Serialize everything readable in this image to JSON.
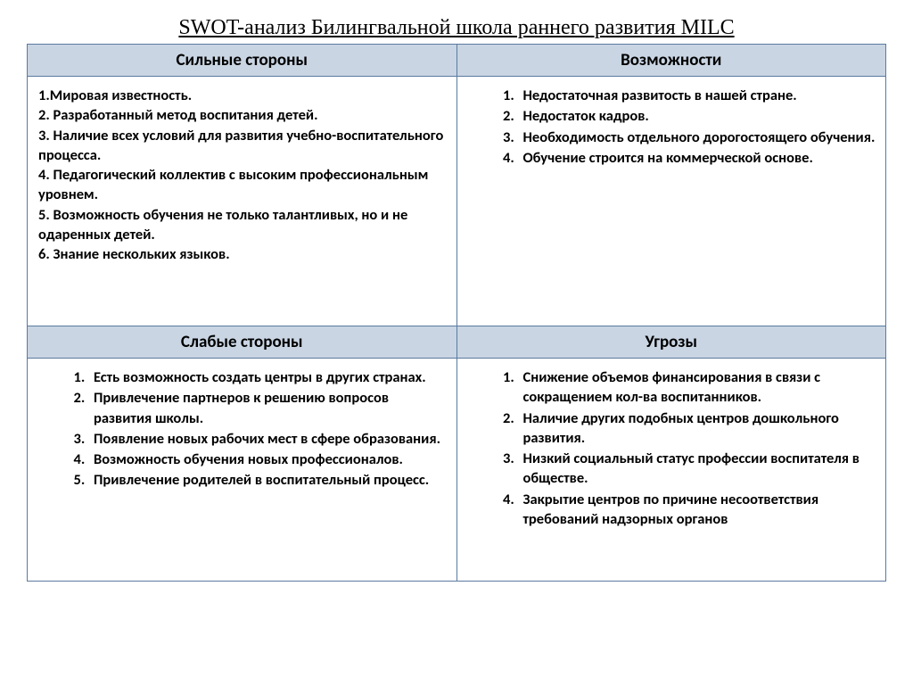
{
  "title": "SWOT-анализ Билингвальной школа раннего развития MILC",
  "colors": {
    "header_bg": "#c9d5e3",
    "border": "#5a7aa0",
    "text": "#000000",
    "page_bg": "#ffffff"
  },
  "quadrants": {
    "strengths": {
      "header": "Сильные стороны",
      "format": "plain",
      "items": [
        "1.Мировая известность.",
        "2. Разработанный метод воспитания детей.",
        "3. Наличие всех условий для развития учебно-воспитательного процесса.",
        "4. Педагогический коллектив с высоким профессиональным уровнем.",
        "5. Возможность обучения не только талантливых, но и не одаренных детей.",
        "6. Знание нескольких языков."
      ]
    },
    "opportunities": {
      "header": "Возможности",
      "format": "ol",
      "items": [
        "Недостаточная развитость в нашей стране.",
        "Недостаток кадров.",
        "Необходимость отдельного дорогостоящего обучения.",
        "Обучение строится на коммерческой основе."
      ]
    },
    "weaknesses": {
      "header": "Слабые стороны",
      "format": "ol",
      "items": [
        "Есть возможность создать центры в других странах.",
        "Привлечение  партнеров к решению вопросов развития школы.",
        "Появление новых рабочих мест в сфере образования.",
        "Возможность обучения новых профессионалов.",
        "Привлечение родителей в воспитательный процесс."
      ]
    },
    "threats": {
      "header": "Угрозы",
      "format": "ol",
      "items": [
        "Снижение объемов финансирования в связи с сокращением кол-ва воспитанников.",
        "Наличие других подобных центров дошкольного развития.",
        "Низкий социальный статус профессии воспитателя в обществе.",
        "Закрытие центров по причине несоответствия требований надзорных органов"
      ]
    }
  }
}
